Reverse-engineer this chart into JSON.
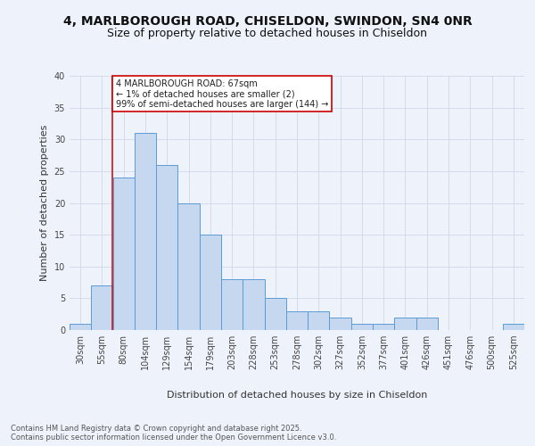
{
  "title_line1": "4, MARLBOROUGH ROAD, CHISELDON, SWINDON, SN4 0NR",
  "title_line2": "Size of property relative to detached houses in Chiseldon",
  "xlabel": "Distribution of detached houses by size in Chiseldon",
  "ylabel": "Number of detached properties",
  "categories": [
    "30sqm",
    "55sqm",
    "80sqm",
    "104sqm",
    "129sqm",
    "154sqm",
    "179sqm",
    "203sqm",
    "228sqm",
    "253sqm",
    "278sqm",
    "302sqm",
    "327sqm",
    "352sqm",
    "377sqm",
    "401sqm",
    "426sqm",
    "451sqm",
    "476sqm",
    "500sqm",
    "525sqm"
  ],
  "values": [
    1,
    7,
    24,
    31,
    26,
    20,
    15,
    8,
    8,
    5,
    3,
    3,
    2,
    1,
    1,
    2,
    2,
    0,
    0,
    0,
    1
  ],
  "bar_color": "#c5d8f0",
  "bar_edge_color": "#5b9bd5",
  "grid_color": "#d0d8e8",
  "background_color": "#eef3fb",
  "annotation_text": "4 MARLBOROUGH ROAD: 67sqm\n← 1% of detached houses are smaller (2)\n99% of semi-detached houses are larger (144) →",
  "annotation_box_color": "#ffffff",
  "annotation_edge_color": "#cc0000",
  "vline_color": "#cc0000",
  "vline_pos": 1.48,
  "ylim": [
    0,
    40
  ],
  "footer_text": "Contains HM Land Registry data © Crown copyright and database right 2025.\nContains public sector information licensed under the Open Government Licence v3.0.",
  "title_fontsize": 10,
  "subtitle_fontsize": 9,
  "label_fontsize": 8,
  "tick_fontsize": 7,
  "annotation_fontsize": 7,
  "footer_fontsize": 6
}
